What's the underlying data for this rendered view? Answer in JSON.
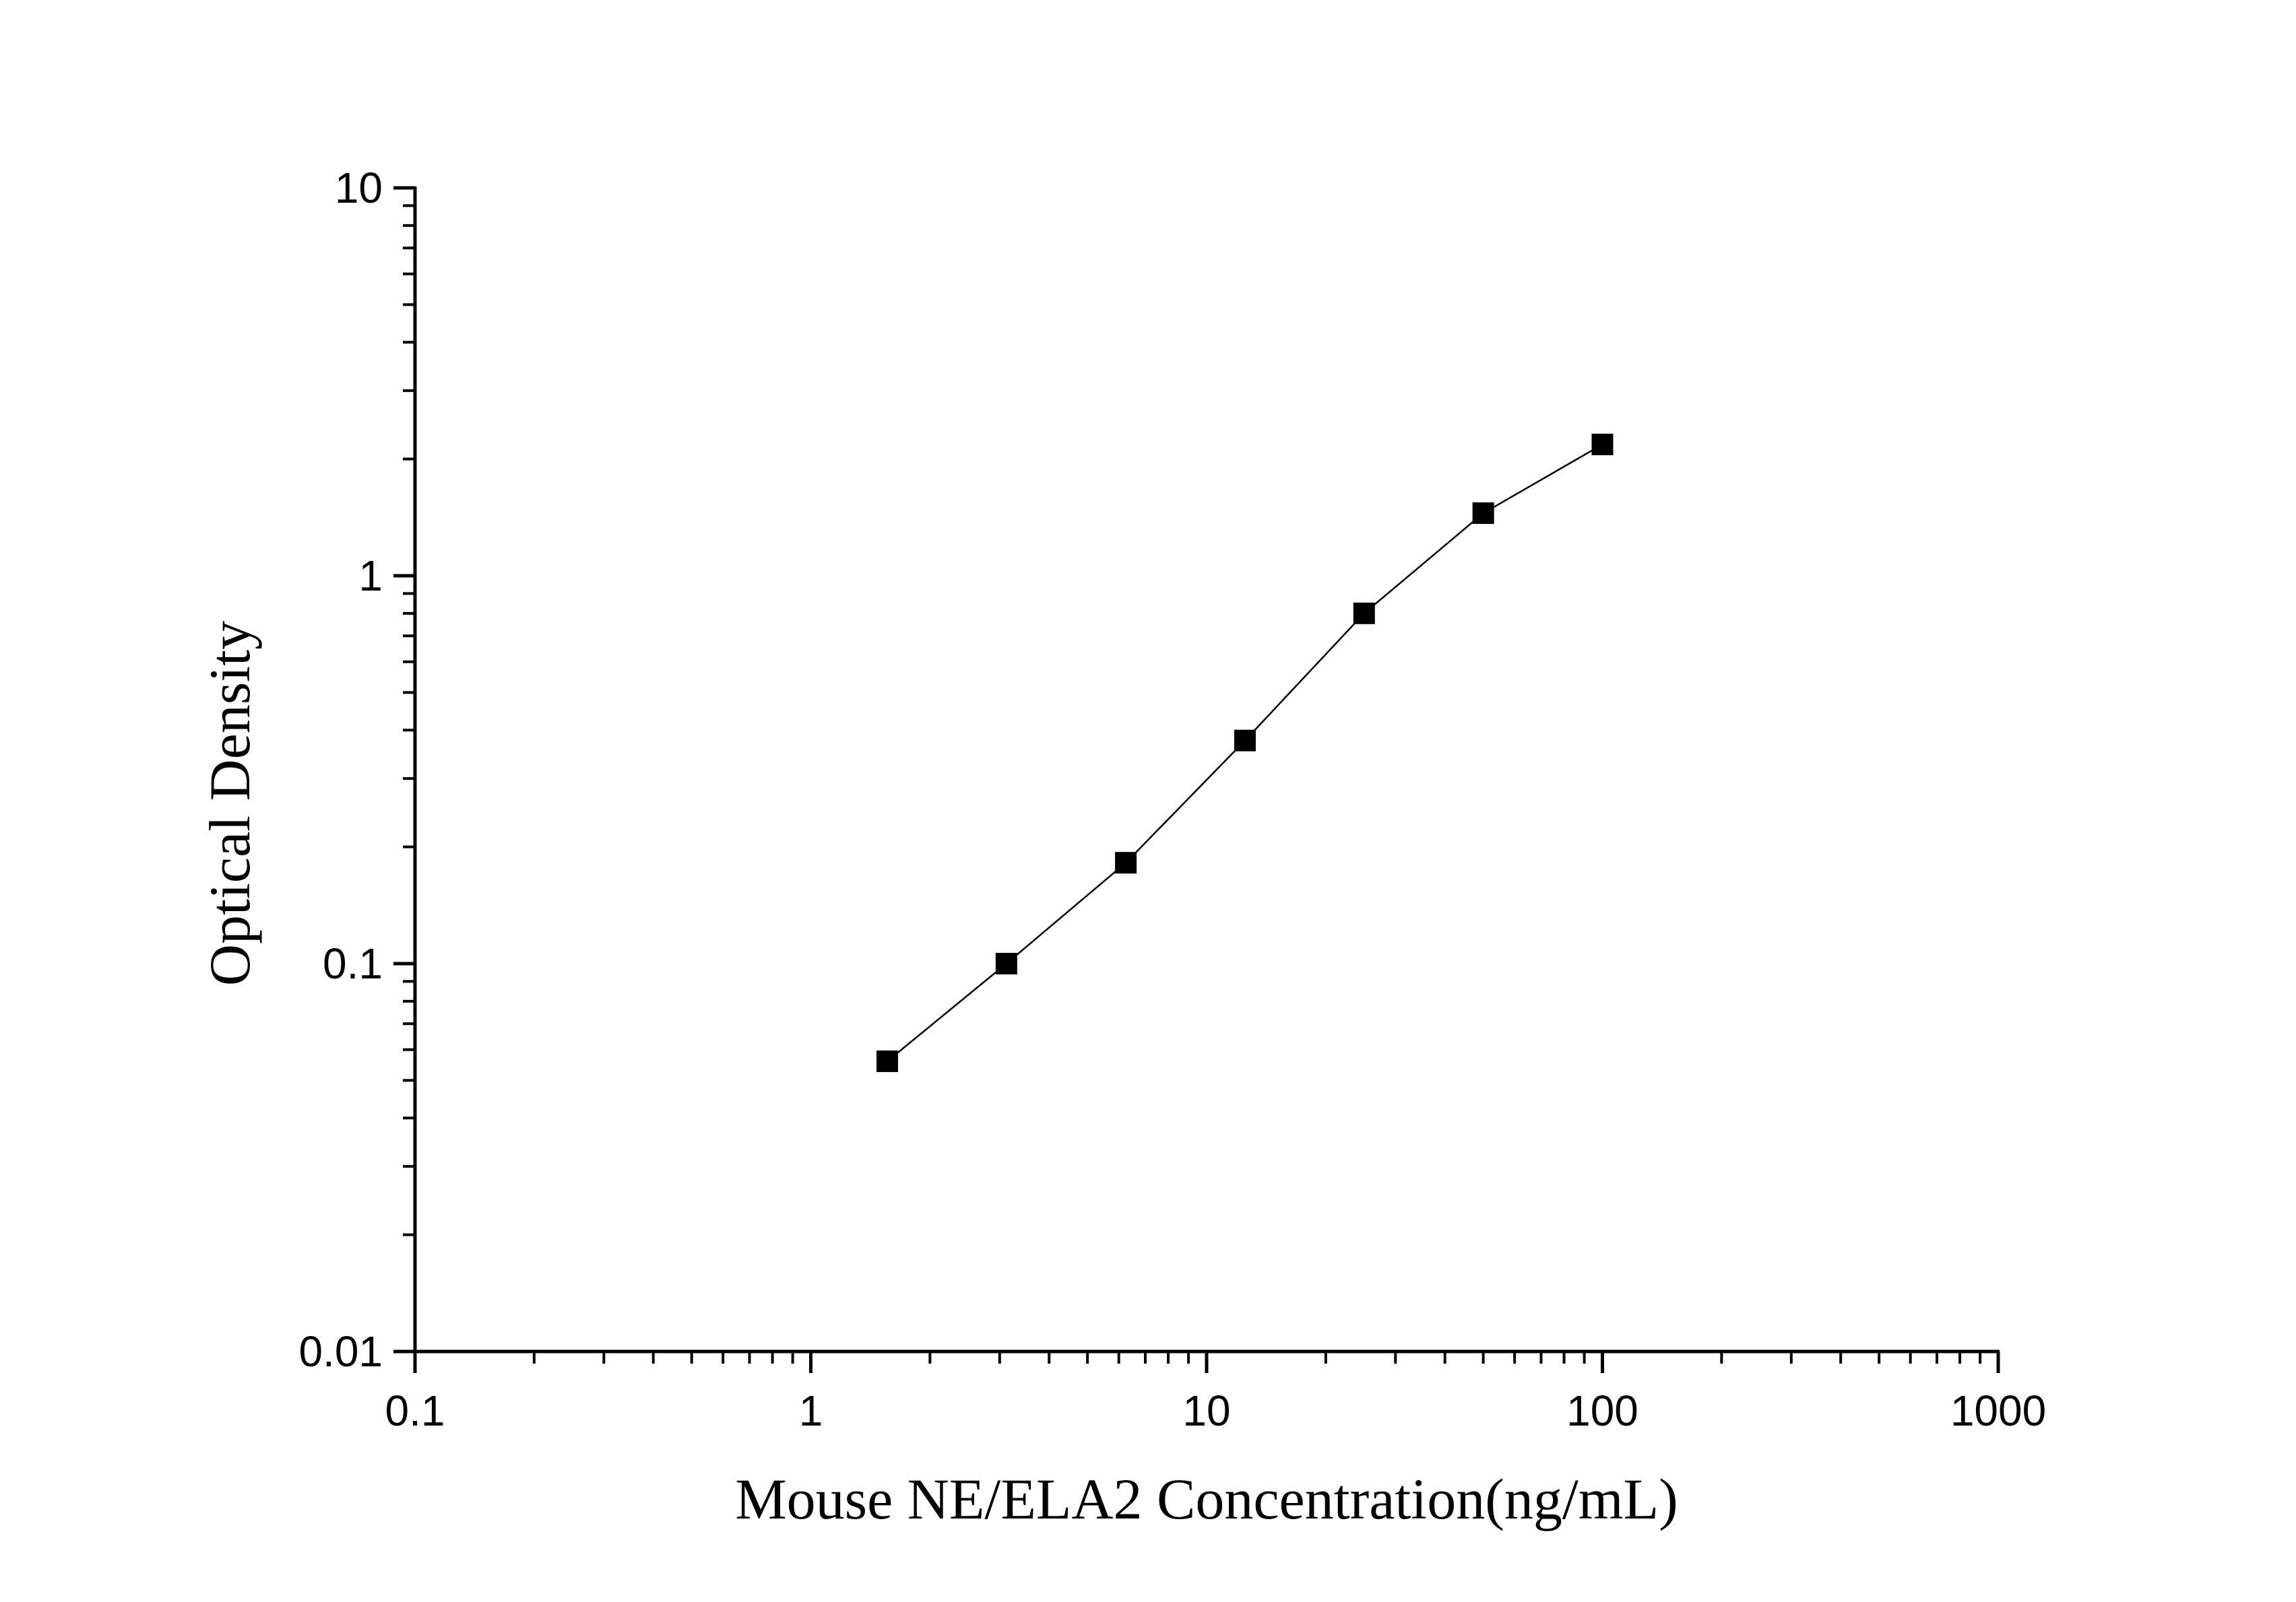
{
  "chart_data": {
    "type": "line",
    "title": "",
    "xlabel": "Mouse NE/ELA2 Concentration(ng/mL)",
    "ylabel": "Optical Density",
    "xscale": "log",
    "yscale": "log",
    "xlim": [
      0.1,
      1000
    ],
    "ylim": [
      0.01,
      10
    ],
    "xticks": [
      "0.1",
      "1",
      "10",
      "100",
      "1000"
    ],
    "yticks": [
      "0.01",
      "0.1",
      "1",
      "10"
    ],
    "grid": false,
    "legend": "none",
    "marker": "square",
    "series": [
      {
        "color": "#000000",
        "points": [
          {
            "x": 1.56,
            "y": 0.056
          },
          {
            "x": 3.12,
            "y": 0.1
          },
          {
            "x": 6.25,
            "y": 0.182
          },
          {
            "x": 12.5,
            "y": 0.376
          },
          {
            "x": 25,
            "y": 0.8
          },
          {
            "x": 50,
            "y": 1.45
          },
          {
            "x": 100,
            "y": 2.18
          }
        ]
      }
    ]
  }
}
